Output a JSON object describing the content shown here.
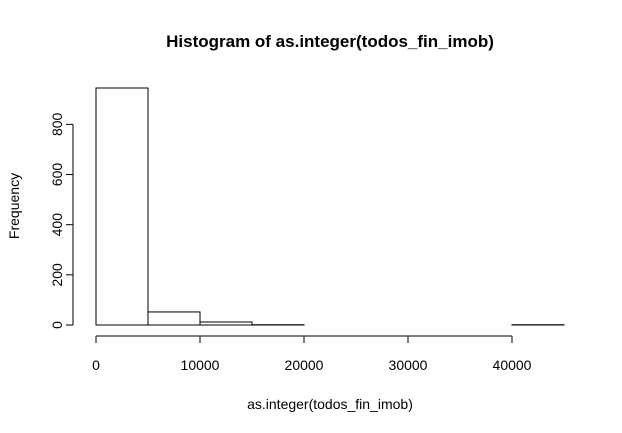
{
  "chart_data": {
    "type": "bar",
    "title": "Histogram of as.integer(todos_fin_imob)",
    "xlabel": "as.integer(todos_fin_imob)",
    "ylabel": "Frequency",
    "bins": [
      {
        "x0": 0,
        "x1": 5000,
        "count": 945
      },
      {
        "x0": 5000,
        "x1": 10000,
        "count": 52
      },
      {
        "x0": 10000,
        "x1": 15000,
        "count": 12
      },
      {
        "x0": 15000,
        "x1": 20000,
        "count": 1
      },
      {
        "x0": 20000,
        "x1": 25000,
        "count": 0
      },
      {
        "x0": 25000,
        "x1": 30000,
        "count": 0
      },
      {
        "x0": 30000,
        "x1": 35000,
        "count": 0
      },
      {
        "x0": 35000,
        "x1": 40000,
        "count": 0
      },
      {
        "x0": 40000,
        "x1": 45000,
        "count": 1
      }
    ],
    "xticks": [
      0,
      10000,
      20000,
      30000,
      40000
    ],
    "xtick_labels": [
      "0",
      "10000",
      "20000",
      "30000",
      "40000"
    ],
    "yticks": [
      0,
      200,
      400,
      600,
      800
    ],
    "ytick_labels": [
      "0",
      "200",
      "400",
      "600",
      "800"
    ],
    "xlim": [
      0,
      45000
    ],
    "ylim": [
      0,
      945
    ],
    "grid": false,
    "legend": "none",
    "colors": {
      "bar_fill": "#ffffff",
      "bar_stroke": "#000000"
    }
  }
}
